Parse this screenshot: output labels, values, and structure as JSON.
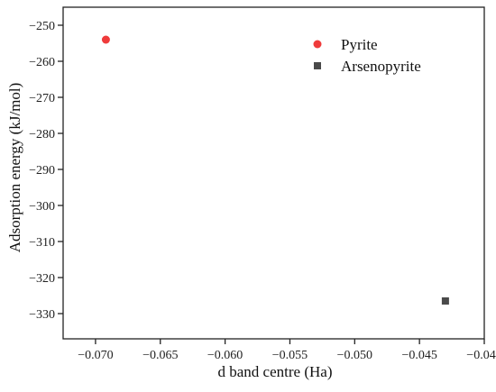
{
  "chart_data": {
    "type": "scatter",
    "title": "",
    "xlabel": "d band centre (Ha)",
    "ylabel": "Adsorption energy (kJ/mol)",
    "xlim": [
      -0.0725,
      -0.04
    ],
    "ylim": [
      -337,
      -245
    ],
    "x_ticks": [
      -0.07,
      -0.065,
      -0.06,
      -0.055,
      -0.05,
      -0.045,
      -0.04
    ],
    "x_tick_labels": [
      "−0.070",
      "−0.065",
      "−0.060",
      "−0.055",
      "−0.050",
      "−0.045",
      "−0.040"
    ],
    "y_ticks": [
      -250,
      -260,
      -270,
      -280,
      -290,
      -300,
      -310,
      -320,
      -330
    ],
    "y_tick_labels": [
      "−250",
      "−260",
      "−270",
      "−280",
      "−290",
      "−300",
      "−310",
      "−320",
      "−330"
    ],
    "grid": false,
    "legend_position": "top-right",
    "series": [
      {
        "name": "Pyrite",
        "marker": "circle",
        "color": "#ef3b3b",
        "x": [
          -0.0692
        ],
        "y": [
          -254
        ]
      },
      {
        "name": "Arsenopyrite",
        "marker": "square",
        "color": "#4a4a4a",
        "x": [
          -0.043
        ],
        "y": [
          -326.5
        ]
      }
    ]
  }
}
